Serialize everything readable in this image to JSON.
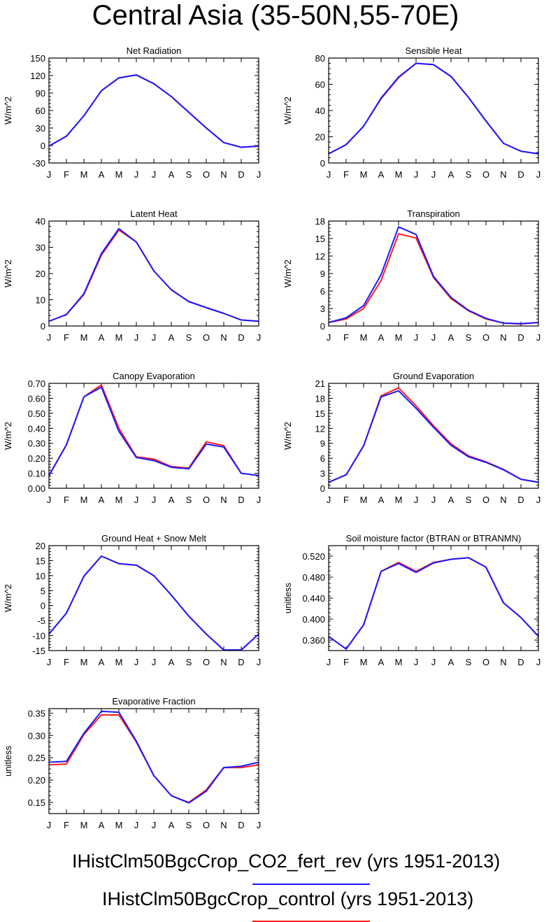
{
  "title": "Central Asia (35-50N,55-70E)",
  "months": [
    "J",
    "F",
    "M",
    "A",
    "M",
    "J",
    "J",
    "A",
    "S",
    "O",
    "N",
    "D",
    "J"
  ],
  "colors": {
    "co2_fert_rev": "#1a1aff",
    "control": "#ff1a1a"
  },
  "legend": [
    {
      "key": "co2_fert_rev",
      "label": "IHistClm50BgcCrop_CO2_fert_rev (yrs 1951-2013)",
      "color": "#1a1aff"
    },
    {
      "key": "control",
      "label": "IHistClm50BgcCrop_control (yrs 1951-2013)",
      "color": "#ff1a1a"
    }
  ],
  "chart_data": [
    {
      "type": "line",
      "title": "Net Radiation",
      "ylabel": "W/m^2",
      "ylim": [
        -30,
        150
      ],
      "yticks": [
        -30,
        0,
        30,
        60,
        90,
        120,
        150
      ],
      "ytick_labels": [
        "-30",
        "0",
        "30",
        "60",
        "90",
        "120",
        "150"
      ],
      "categories": [
        "J",
        "F",
        "M",
        "A",
        "M",
        "J",
        "J",
        "A",
        "S",
        "O",
        "N",
        "D",
        "J"
      ],
      "series": [
        {
          "key": "control",
          "values": [
            -1,
            16,
            51,
            94,
            116,
            121,
            106,
            84,
            57,
            30,
            5,
            -3,
            -1
          ]
        },
        {
          "key": "co2_fert_rev",
          "values": [
            -1,
            16,
            51,
            94,
            116,
            121,
            106,
            84,
            57,
            30,
            5,
            -3,
            -1
          ]
        }
      ]
    },
    {
      "type": "line",
      "title": "Sensible Heat",
      "ylabel": "W/m^2",
      "ylim": [
        0,
        80
      ],
      "yticks": [
        0,
        20,
        40,
        60,
        80
      ],
      "ytick_labels": [
        "0",
        "20",
        "40",
        "60",
        "80"
      ],
      "categories": [
        "J",
        "F",
        "M",
        "A",
        "M",
        "J",
        "J",
        "A",
        "S",
        "O",
        "N",
        "D",
        "J"
      ],
      "series": [
        {
          "key": "control",
          "values": [
            7,
            14,
            28,
            49,
            65,
            76,
            75,
            66,
            50,
            32,
            15,
            9,
            7
          ]
        },
        {
          "key": "co2_fert_rev",
          "values": [
            7,
            14,
            28,
            49.5,
            65.5,
            76,
            75,
            66,
            50,
            32,
            15,
            9,
            7
          ]
        }
      ]
    },
    {
      "type": "line",
      "title": "Latent Heat",
      "ylabel": "W/m^2",
      "ylim": [
        0,
        40
      ],
      "yticks": [
        0,
        10,
        20,
        30,
        40
      ],
      "ytick_labels": [
        "0",
        "10",
        "20",
        "30",
        "40"
      ],
      "categories": [
        "J",
        "F",
        "M",
        "A",
        "M",
        "J",
        "J",
        "A",
        "S",
        "O",
        "N",
        "D",
        "J"
      ],
      "series": [
        {
          "key": "control",
          "values": [
            1.8,
            4.3,
            12,
            27,
            36.6,
            32,
            21,
            13.8,
            9.3,
            7,
            4.8,
            2.3,
            1.8
          ]
        },
        {
          "key": "co2_fert_rev",
          "values": [
            1.8,
            4.4,
            12.3,
            27.6,
            37.1,
            32,
            21,
            13.8,
            9.3,
            7,
            4.8,
            2.3,
            1.8
          ]
        }
      ]
    },
    {
      "type": "line",
      "title": "Transpiration",
      "ylabel": "W/m^2",
      "ylim": [
        0,
        18
      ],
      "yticks": [
        0,
        3,
        6,
        9,
        12,
        15,
        18
      ],
      "ytick_labels": [
        "0",
        "3",
        "6",
        "9",
        "12",
        "15",
        "18"
      ],
      "categories": [
        "J",
        "F",
        "M",
        "A",
        "M",
        "J",
        "J",
        "A",
        "S",
        "O",
        "N",
        "D",
        "J"
      ],
      "series": [
        {
          "key": "control",
          "values": [
            0.6,
            1.2,
            3.0,
            7.8,
            15.8,
            15.1,
            8.3,
            4.7,
            2.6,
            1.2,
            0.5,
            0.35,
            0.6
          ]
        },
        {
          "key": "co2_fert_rev",
          "values": [
            0.6,
            1.4,
            3.5,
            8.8,
            17.0,
            15.7,
            8.5,
            4.9,
            2.7,
            1.3,
            0.5,
            0.4,
            0.6
          ]
        }
      ]
    },
    {
      "type": "line",
      "title": "Canopy Evaporation",
      "ylabel": "W/m^2",
      "ylim": [
        0,
        0.7
      ],
      "yticks": [
        0,
        0.1,
        0.2,
        0.3,
        0.4,
        0.5,
        0.6,
        0.7
      ],
      "ytick_labels": [
        "0.00",
        "0.10",
        "0.20",
        "0.30",
        "0.40",
        "0.50",
        "0.60",
        "0.70"
      ],
      "categories": [
        "J",
        "F",
        "M",
        "A",
        "M",
        "J",
        "J",
        "A",
        "S",
        "O",
        "N",
        "D",
        "J"
      ],
      "series": [
        {
          "key": "control",
          "values": [
            0.085,
            0.29,
            0.61,
            0.69,
            0.4,
            0.21,
            0.195,
            0.145,
            0.135,
            0.31,
            0.285,
            0.1,
            0.085
          ]
        },
        {
          "key": "co2_fert_rev",
          "values": [
            0.085,
            0.29,
            0.61,
            0.675,
            0.38,
            0.205,
            0.185,
            0.14,
            0.13,
            0.295,
            0.275,
            0.1,
            0.085
          ]
        }
      ]
    },
    {
      "type": "line",
      "title": "Ground Evaporation",
      "ylabel": "W/m^2",
      "ylim": [
        0,
        21
      ],
      "yticks": [
        0,
        3,
        6,
        9,
        12,
        15,
        18,
        21
      ],
      "ytick_labels": [
        "0",
        "3",
        "6",
        "9",
        "12",
        "15",
        "18",
        "21"
      ],
      "categories": [
        "J",
        "F",
        "M",
        "A",
        "M",
        "J",
        "J",
        "A",
        "S",
        "O",
        "N",
        "D",
        "J"
      ],
      "series": [
        {
          "key": "control",
          "values": [
            1.2,
            2.7,
            8.5,
            18.5,
            20.1,
            16.5,
            12.5,
            8.9,
            6.5,
            5.3,
            3.8,
            1.8,
            1.2
          ]
        },
        {
          "key": "co2_fert_rev",
          "values": [
            1.2,
            2.7,
            8.5,
            18.3,
            19.5,
            16.0,
            12.2,
            8.6,
            6.3,
            5.2,
            3.7,
            1.8,
            1.2
          ]
        }
      ]
    },
    {
      "type": "line",
      "title": "Ground Heat + Snow Melt",
      "ylabel": "W/m^2",
      "ylim": [
        -15,
        20
      ],
      "yticks": [
        -15,
        -10,
        -5,
        0,
        5,
        10,
        15,
        20
      ],
      "ytick_labels": [
        "-15",
        "-10",
        "-5",
        "0",
        "5",
        "10",
        "15",
        "20"
      ],
      "categories": [
        "J",
        "F",
        "M",
        "A",
        "M",
        "J",
        "J",
        "A",
        "S",
        "O",
        "N",
        "D",
        "J"
      ],
      "series": [
        {
          "key": "control",
          "values": [
            -9.5,
            -2.5,
            9.8,
            16.5,
            14,
            13.5,
            10,
            3.5,
            -3.5,
            -9.5,
            -14.8,
            -14.8,
            -9.5
          ]
        },
        {
          "key": "co2_fert_rev",
          "values": [
            -9.5,
            -2.5,
            9.8,
            16.5,
            14,
            13.5,
            10,
            3.5,
            -3.5,
            -9.5,
            -14.8,
            -14.8,
            -9.5
          ]
        }
      ]
    },
    {
      "type": "line",
      "title": "Soil moisture factor (BTRAN or BTRANMN)",
      "ylabel": "unitless",
      "ylim": [
        0.34,
        0.54
      ],
      "yticks": [
        0.36,
        0.4,
        0.44,
        0.48,
        0.52
      ],
      "ytick_labels": [
        "0.360",
        "0.400",
        "0.440",
        "0.480",
        "0.520"
      ],
      "categories": [
        "J",
        "F",
        "M",
        "A",
        "M",
        "J",
        "J",
        "A",
        "S",
        "O",
        "N",
        "D",
        "J"
      ],
      "series": [
        {
          "key": "control",
          "values": [
            0.367,
            0.343,
            0.389,
            0.491,
            0.508,
            0.491,
            0.508,
            0.514,
            0.517,
            0.499,
            0.431,
            0.403,
            0.367
          ]
        },
        {
          "key": "co2_fert_rev",
          "values": [
            0.367,
            0.343,
            0.389,
            0.491,
            0.506,
            0.489,
            0.507,
            0.514,
            0.517,
            0.499,
            0.431,
            0.403,
            0.367
          ]
        }
      ]
    },
    {
      "type": "line",
      "title": "Evaporative Fraction",
      "ylabel": "unitless",
      "ylim": [
        0.125,
        0.36
      ],
      "yticks": [
        0.15,
        0.2,
        0.25,
        0.3,
        0.35
      ],
      "ytick_labels": [
        "0.15",
        "0.20",
        "0.25",
        "0.30",
        "0.35"
      ],
      "categories": [
        "J",
        "F",
        "M",
        "A",
        "M",
        "J",
        "J",
        "A",
        "S",
        "O",
        "N",
        "D",
        "J"
      ],
      "series": [
        {
          "key": "control",
          "values": [
            0.234,
            0.236,
            0.302,
            0.346,
            0.346,
            0.285,
            0.21,
            0.165,
            0.15,
            0.178,
            0.228,
            0.228,
            0.234
          ]
        },
        {
          "key": "co2_fert_rev",
          "values": [
            0.24,
            0.242,
            0.305,
            0.354,
            0.352,
            0.287,
            0.21,
            0.165,
            0.149,
            0.175,
            0.228,
            0.231,
            0.24
          ]
        }
      ]
    }
  ]
}
